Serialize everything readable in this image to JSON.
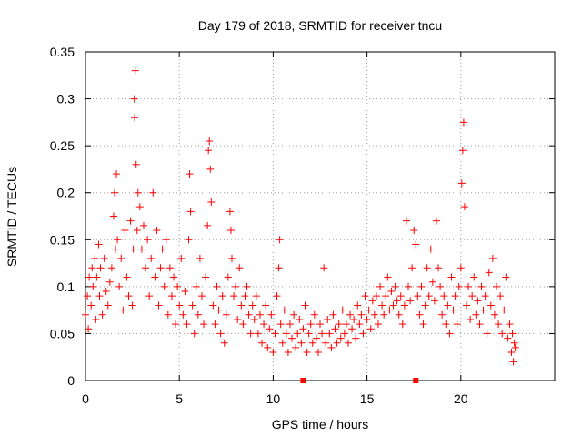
{
  "chart_data": {
    "type": "scatter",
    "title": "Day 179 of 2018, SRMTID for receiver tncu",
    "xlabel": "GPS time / hours",
    "ylabel": "SRMTID / TECUs",
    "xlim": [
      0,
      25
    ],
    "ylim": [
      0,
      0.35
    ],
    "x_ticks": [
      0,
      5,
      10,
      15,
      20
    ],
    "y_ticks": [
      0,
      0.05,
      0.1,
      0.15,
      0.2,
      0.25,
      0.3,
      0.35
    ],
    "grid": true,
    "marker": "+",
    "color": "#ff0000",
    "baseline_marks_x": [
      11.6,
      17.6
    ],
    "points": [
      [
        0.0,
        0.07
      ],
      [
        0.1,
        0.09
      ],
      [
        0.15,
        0.055
      ],
      [
        0.2,
        0.11
      ],
      [
        0.3,
        0.08
      ],
      [
        0.35,
        0.12
      ],
      [
        0.4,
        0.1
      ],
      [
        0.5,
        0.13
      ],
      [
        0.55,
        0.065
      ],
      [
        0.6,
        0.11
      ],
      [
        0.7,
        0.145
      ],
      [
        0.75,
        0.09
      ],
      [
        0.8,
        0.12
      ],
      [
        0.9,
        0.07
      ],
      [
        1.0,
        0.13
      ],
      [
        1.1,
        0.095
      ],
      [
        1.2,
        0.08
      ],
      [
        1.3,
        0.105
      ],
      [
        1.4,
        0.12
      ],
      [
        1.5,
        0.175
      ],
      [
        1.55,
        0.2
      ],
      [
        1.6,
        0.14
      ],
      [
        1.65,
        0.22
      ],
      [
        1.7,
        0.15
      ],
      [
        1.8,
        0.1
      ],
      [
        1.9,
        0.13
      ],
      [
        2.0,
        0.075
      ],
      [
        2.1,
        0.16
      ],
      [
        2.2,
        0.11
      ],
      [
        2.3,
        0.09
      ],
      [
        2.4,
        0.17
      ],
      [
        2.5,
        0.08
      ],
      [
        2.55,
        0.14
      ],
      [
        2.6,
        0.3
      ],
      [
        2.62,
        0.28
      ],
      [
        2.65,
        0.33
      ],
      [
        2.7,
        0.23
      ],
      [
        2.75,
        0.16
      ],
      [
        2.8,
        0.2
      ],
      [
        2.9,
        0.185
      ],
      [
        3.0,
        0.14
      ],
      [
        3.1,
        0.165
      ],
      [
        3.2,
        0.12
      ],
      [
        3.3,
        0.15
      ],
      [
        3.4,
        0.09
      ],
      [
        3.5,
        0.13
      ],
      [
        3.6,
        0.2
      ],
      [
        3.7,
        0.11
      ],
      [
        3.8,
        0.16
      ],
      [
        3.9,
        0.08
      ],
      [
        4.0,
        0.12
      ],
      [
        4.1,
        0.14
      ],
      [
        4.2,
        0.1
      ],
      [
        4.3,
        0.15
      ],
      [
        4.4,
        0.07
      ],
      [
        4.5,
        0.12
      ],
      [
        4.6,
        0.09
      ],
      [
        4.7,
        0.11
      ],
      [
        4.8,
        0.06
      ],
      [
        4.9,
        0.1
      ],
      [
        5.0,
        0.08
      ],
      [
        5.1,
        0.13
      ],
      [
        5.2,
        0.07
      ],
      [
        5.3,
        0.095
      ],
      [
        5.4,
        0.06
      ],
      [
        5.5,
        0.15
      ],
      [
        5.55,
        0.22
      ],
      [
        5.6,
        0.18
      ],
      [
        5.7,
        0.08
      ],
      [
        5.8,
        0.05
      ],
      [
        5.9,
        0.1
      ],
      [
        6.0,
        0.07
      ],
      [
        6.1,
        0.13
      ],
      [
        6.2,
        0.09
      ],
      [
        6.3,
        0.06
      ],
      [
        6.4,
        0.11
      ],
      [
        6.5,
        0.165
      ],
      [
        6.55,
        0.245
      ],
      [
        6.6,
        0.255
      ],
      [
        6.65,
        0.225
      ],
      [
        6.7,
        0.19
      ],
      [
        6.8,
        0.08
      ],
      [
        6.9,
        0.06
      ],
      [
        7.0,
        0.1
      ],
      [
        7.1,
        0.075
      ],
      [
        7.2,
        0.05
      ],
      [
        7.3,
        0.09
      ],
      [
        7.4,
        0.04
      ],
      [
        7.5,
        0.07
      ],
      [
        7.6,
        0.11
      ],
      [
        7.7,
        0.18
      ],
      [
        7.75,
        0.16
      ],
      [
        7.8,
        0.13
      ],
      [
        7.9,
        0.09
      ],
      [
        8.0,
        0.1
      ],
      [
        8.1,
        0.065
      ],
      [
        8.2,
        0.12
      ],
      [
        8.3,
        0.08
      ],
      [
        8.4,
        0.06
      ],
      [
        8.5,
        0.09
      ],
      [
        8.6,
        0.1
      ],
      [
        8.7,
        0.07
      ],
      [
        8.8,
        0.05
      ],
      [
        8.9,
        0.08
      ],
      [
        9.0,
        0.065
      ],
      [
        9.1,
        0.09
      ],
      [
        9.2,
        0.05
      ],
      [
        9.3,
        0.07
      ],
      [
        9.4,
        0.04
      ],
      [
        9.5,
        0.06
      ],
      [
        9.6,
        0.08
      ],
      [
        9.7,
        0.035
      ],
      [
        9.8,
        0.055
      ],
      [
        9.9,
        0.07
      ],
      [
        10.0,
        0.03
      ],
      [
        10.1,
        0.05
      ],
      [
        10.2,
        0.09
      ],
      [
        10.3,
        0.12
      ],
      [
        10.35,
        0.15
      ],
      [
        10.4,
        0.06
      ],
      [
        10.5,
        0.04
      ],
      [
        10.6,
        0.075
      ],
      [
        10.7,
        0.05
      ],
      [
        10.8,
        0.03
      ],
      [
        10.9,
        0.06
      ],
      [
        11.0,
        0.045
      ],
      [
        11.1,
        0.07
      ],
      [
        11.2,
        0.035
      ],
      [
        11.3,
        0.05
      ],
      [
        11.4,
        0.065
      ],
      [
        11.5,
        0.04
      ],
      [
        11.6,
        0.055
      ],
      [
        11.7,
        0.08
      ],
      [
        11.8,
        0.03
      ],
      [
        11.9,
        0.05
      ],
      [
        12.0,
        0.06
      ],
      [
        12.1,
        0.04
      ],
      [
        12.2,
        0.07
      ],
      [
        12.3,
        0.045
      ],
      [
        12.4,
        0.03
      ],
      [
        12.5,
        0.06
      ],
      [
        12.6,
        0.05
      ],
      [
        12.7,
        0.12
      ],
      [
        12.8,
        0.04
      ],
      [
        12.9,
        0.065
      ],
      [
        13.0,
        0.05
      ],
      [
        13.1,
        0.035
      ],
      [
        13.2,
        0.07
      ],
      [
        13.3,
        0.055
      ],
      [
        13.4,
        0.04
      ],
      [
        13.5,
        0.06
      ],
      [
        13.6,
        0.045
      ],
      [
        13.7,
        0.075
      ],
      [
        13.8,
        0.05
      ],
      [
        13.9,
        0.06
      ],
      [
        14.0,
        0.04
      ],
      [
        14.1,
        0.07
      ],
      [
        14.2,
        0.055
      ],
      [
        14.3,
        0.065
      ],
      [
        14.4,
        0.045
      ],
      [
        14.5,
        0.08
      ],
      [
        14.6,
        0.06
      ],
      [
        14.7,
        0.07
      ],
      [
        14.8,
        0.05
      ],
      [
        14.9,
        0.09
      ],
      [
        15.0,
        0.065
      ],
      [
        15.1,
        0.075
      ],
      [
        15.2,
        0.055
      ],
      [
        15.3,
        0.085
      ],
      [
        15.4,
        0.07
      ],
      [
        15.5,
        0.09
      ],
      [
        15.6,
        0.06
      ],
      [
        15.7,
        0.1
      ],
      [
        15.8,
        0.08
      ],
      [
        15.9,
        0.07
      ],
      [
        16.0,
        0.09
      ],
      [
        16.1,
        0.11
      ],
      [
        16.2,
        0.075
      ],
      [
        16.3,
        0.095
      ],
      [
        16.4,
        0.08
      ],
      [
        16.5,
        0.1
      ],
      [
        16.6,
        0.085
      ],
      [
        16.7,
        0.07
      ],
      [
        16.8,
        0.09
      ],
      [
        16.9,
        0.06
      ],
      [
        17.0,
        0.08
      ],
      [
        17.1,
        0.17
      ],
      [
        17.2,
        0.1
      ],
      [
        17.3,
        0.085
      ],
      [
        17.4,
        0.12
      ],
      [
        17.5,
        0.16
      ],
      [
        17.6,
        0.145
      ],
      [
        17.7,
        0.09
      ],
      [
        17.8,
        0.07
      ],
      [
        17.9,
        0.1
      ],
      [
        18.0,
        0.06
      ],
      [
        18.1,
        0.08
      ],
      [
        18.2,
        0.12
      ],
      [
        18.3,
        0.09
      ],
      [
        18.4,
        0.14
      ],
      [
        18.5,
        0.105
      ],
      [
        18.6,
        0.085
      ],
      [
        18.7,
        0.17
      ],
      [
        18.8,
        0.12
      ],
      [
        18.9,
        0.1
      ],
      [
        19.0,
        0.07
      ],
      [
        19.1,
        0.09
      ],
      [
        19.2,
        0.06
      ],
      [
        19.3,
        0.08
      ],
      [
        19.4,
        0.05
      ],
      [
        19.5,
        0.11
      ],
      [
        19.6,
        0.075
      ],
      [
        19.7,
        0.09
      ],
      [
        19.8,
        0.06
      ],
      [
        19.9,
        0.1
      ],
      [
        20.0,
        0.12
      ],
      [
        20.05,
        0.21
      ],
      [
        20.1,
        0.245
      ],
      [
        20.15,
        0.275
      ],
      [
        20.2,
        0.185
      ],
      [
        20.3,
        0.08
      ],
      [
        20.4,
        0.1
      ],
      [
        20.5,
        0.065
      ],
      [
        20.6,
        0.09
      ],
      [
        20.7,
        0.11
      ],
      [
        20.8,
        0.07
      ],
      [
        20.9,
        0.085
      ],
      [
        21.0,
        0.06
      ],
      [
        21.1,
        0.1
      ],
      [
        21.2,
        0.075
      ],
      [
        21.3,
        0.09
      ],
      [
        21.4,
        0.05
      ],
      [
        21.5,
        0.115
      ],
      [
        21.6,
        0.08
      ],
      [
        21.7,
        0.13
      ],
      [
        21.8,
        0.07
      ],
      [
        21.9,
        0.1
      ],
      [
        22.0,
        0.06
      ],
      [
        22.1,
        0.09
      ],
      [
        22.2,
        0.05
      ],
      [
        22.3,
        0.075
      ],
      [
        22.4,
        0.11
      ],
      [
        22.5,
        0.045
      ],
      [
        22.6,
        0.06
      ],
      [
        22.7,
        0.03
      ],
      [
        22.75,
        0.05
      ],
      [
        22.8,
        0.02
      ],
      [
        22.85,
        0.04
      ],
      [
        22.9,
        0.035
      ]
    ]
  }
}
